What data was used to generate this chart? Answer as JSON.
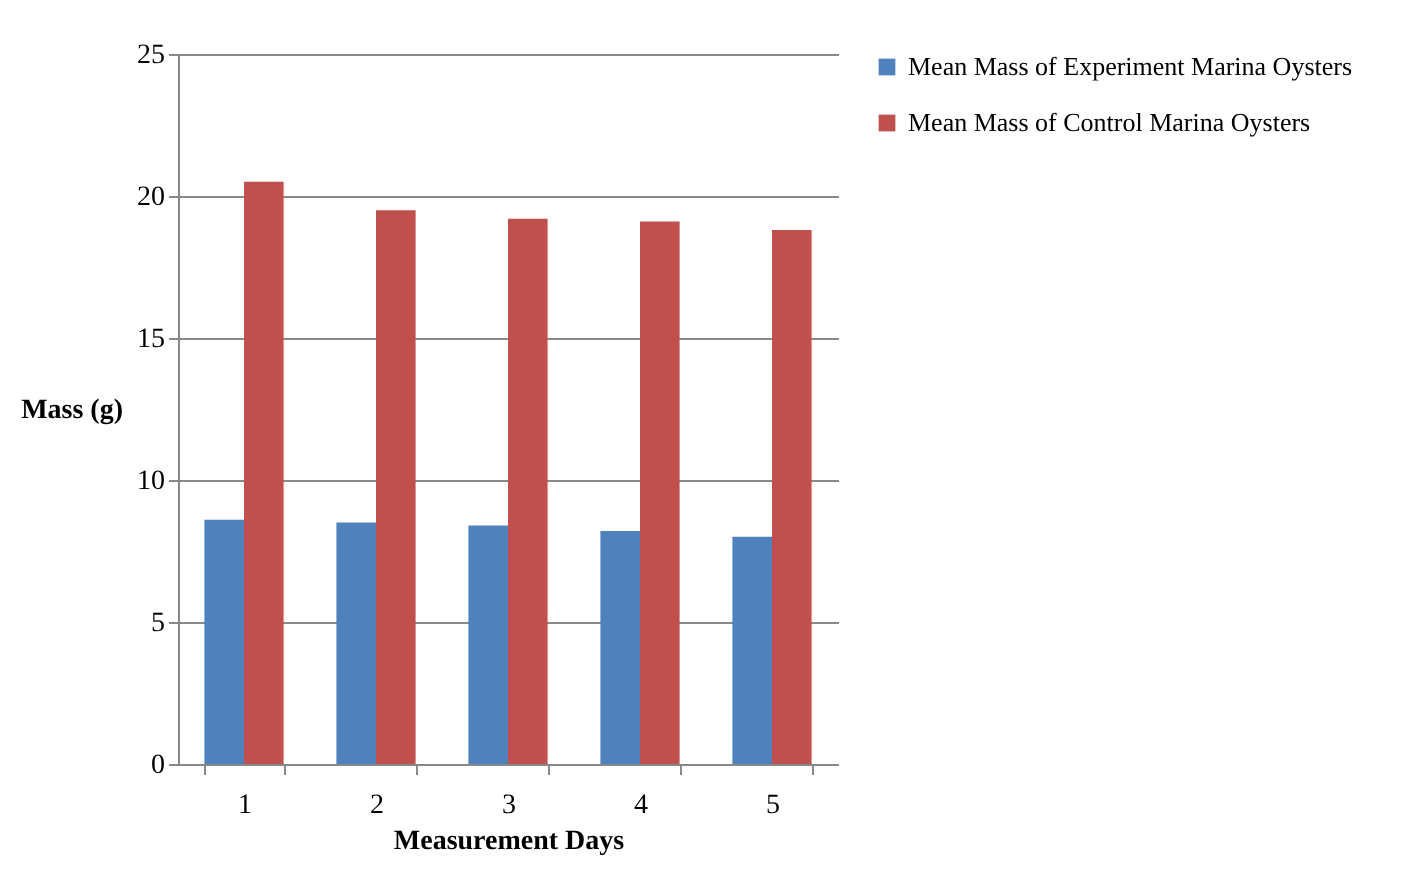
{
  "chart_data": {
    "type": "bar",
    "xlabel": "Measurement Days",
    "ylabel": "Mass (g)",
    "categories": [
      "1",
      "2",
      "3",
      "4",
      "5"
    ],
    "series": [
      {
        "name": "Mean Mass of Experiment Marina Oysters",
        "color": "#4f81bd",
        "values": [
          8.6,
          8.5,
          8.4,
          8.2,
          8.0
        ]
      },
      {
        "name": "Mean Mass of Control Marina Oysters",
        "color": "#c0504d",
        "values": [
          20.5,
          19.5,
          19.2,
          19.1,
          18.8
        ]
      }
    ],
    "ylim": [
      0,
      25
    ],
    "yticks": [
      0,
      5,
      10,
      15,
      20,
      25
    ],
    "grid": "y",
    "legend": "right"
  }
}
